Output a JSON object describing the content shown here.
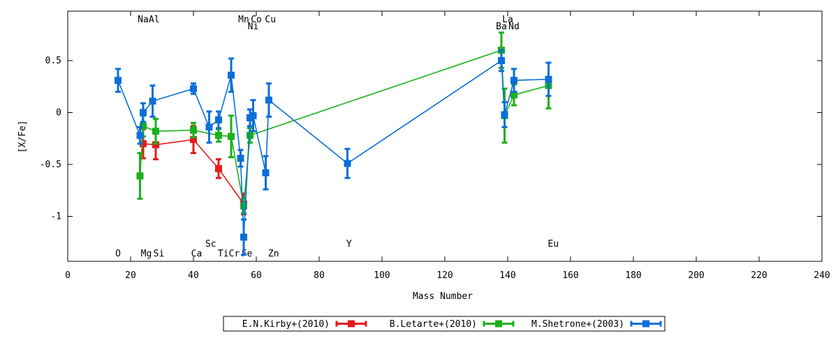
{
  "chart_data": {
    "type": "scatter",
    "title": "",
    "xlabel": "Mass Number",
    "ylabel": "[X/Fe]",
    "xlim": [
      0,
      240
    ],
    "ylim": [
      -1.45,
      0.97
    ],
    "xticks": [
      0,
      20,
      40,
      60,
      80,
      100,
      120,
      140,
      160,
      180,
      200,
      220,
      240
    ],
    "yticks": [
      -1,
      -0.5,
      0,
      0.5
    ],
    "ytick_labels": [
      "-1",
      "-0.5",
      "0",
      "0.5"
    ],
    "grid": false,
    "legend_position": "bottom-center",
    "element_labels": [
      {
        "text": "Na",
        "x": 24,
        "row": "top1"
      },
      {
        "text": "Al",
        "x": 27.5,
        "row": "top1"
      },
      {
        "text": "Mn",
        "x": 56,
        "row": "top1"
      },
      {
        "text": "Co",
        "x": 60,
        "row": "top1"
      },
      {
        "text": "Cu",
        "x": 64.5,
        "row": "top1"
      },
      {
        "text": "Ni",
        "x": 59,
        "row": "top2"
      },
      {
        "text": "La",
        "x": 140,
        "row": "top1"
      },
      {
        "text": "Ba",
        "x": 138,
        "row": "top2"
      },
      {
        "text": "Nd",
        "x": 142,
        "row": "top2"
      },
      {
        "text": "Sc",
        "x": 45.5,
        "row": "bot1"
      },
      {
        "text": "Y",
        "x": 89.5,
        "row": "bot1"
      },
      {
        "text": "Eu",
        "x": 154.5,
        "row": "bot1"
      },
      {
        "text": "O",
        "x": 16,
        "row": "bot2"
      },
      {
        "text": "Mg",
        "x": 25,
        "row": "bot2"
      },
      {
        "text": "Si",
        "x": 29,
        "row": "bot2"
      },
      {
        "text": "Ca",
        "x": 41,
        "row": "bot2"
      },
      {
        "text": "Ti",
        "x": 49.5,
        "row": "bot2"
      },
      {
        "text": "Cr",
        "x": 53,
        "row": "bot2"
      },
      {
        "text": "Fe",
        "x": 57,
        "row": "bot2"
      },
      {
        "text": "Zn",
        "x": 65.5,
        "row": "bot2"
      }
    ],
    "series": [
      {
        "name": "E.N.Kirby+(2010)",
        "color": "#e8191d",
        "points": [
          {
            "x": 24,
            "y": -0.3,
            "err": 0.14
          },
          {
            "x": 28,
            "y": -0.31,
            "err": 0.14
          },
          {
            "x": 40,
            "y": -0.26,
            "err": 0.13
          },
          {
            "x": 48,
            "y": -0.54,
            "err": 0.09
          },
          {
            "x": 56,
            "y": -0.88,
            "err": 0.1
          }
        ]
      },
      {
        "name": "B.Letarte+(2010)",
        "color": "#1ab11a",
        "points": [
          {
            "x": 23,
            "y": -0.61,
            "err": 0.22
          },
          {
            "x": 24,
            "y": -0.13,
            "err": 0.1
          },
          {
            "x": 28,
            "y": -0.18,
            "err": 0.12
          },
          {
            "x": 40,
            "y": -0.17,
            "err": 0.07
          },
          {
            "x": 48,
            "y": -0.22,
            "err": 0.06
          },
          {
            "x": 52,
            "y": -0.23,
            "err": 0.2
          },
          {
            "x": 56,
            "y": -0.9,
            "err": 0.07
          },
          {
            "x": 58,
            "y": -0.22,
            "err": 0.07
          },
          {
            "x": 138,
            "y": 0.6,
            "err": 0.17
          },
          {
            "x": 139,
            "y": -0.03,
            "err": 0.26
          },
          {
            "x": 142,
            "y": 0.17,
            "err": 0.1
          },
          {
            "x": 153,
            "y": 0.26,
            "err": 0.22
          }
        ]
      },
      {
        "name": "M.Shetrone+(2003)",
        "color": "#0c6fd8",
        "points": [
          {
            "x": 16,
            "y": 0.31,
            "err": 0.11
          },
          {
            "x": 23,
            "y": -0.22,
            "err": 0.08
          },
          {
            "x": 24,
            "y": 0.0,
            "err": 0.09
          },
          {
            "x": 27,
            "y": 0.11,
            "err": 0.15
          },
          {
            "x": 40,
            "y": 0.23,
            "err": 0.05
          },
          {
            "x": 45,
            "y": -0.14,
            "err": 0.15
          },
          {
            "x": 48,
            "y": -0.07,
            "err": 0.08
          },
          {
            "x": 52,
            "y": 0.36,
            "err": 0.16
          },
          {
            "x": 55,
            "y": -0.44,
            "err": 0.08
          },
          {
            "x": 56,
            "y": -1.2,
            "err": 0.17
          },
          {
            "x": 58,
            "y": -0.05,
            "err": 0.08
          },
          {
            "x": 59,
            "y": -0.03,
            "err": 0.15
          },
          {
            "x": 63,
            "y": -0.58,
            "err": 0.16
          },
          {
            "x": 64,
            "y": 0.12,
            "err": 0.16
          },
          {
            "x": 89,
            "y": -0.49,
            "err": 0.14
          },
          {
            "x": 138,
            "y": 0.5,
            "err": 0.1
          },
          {
            "x": 139,
            "y": -0.02,
            "err": 0.12
          },
          {
            "x": 142,
            "y": 0.31,
            "err": 0.11
          },
          {
            "x": 153,
            "y": 0.32,
            "err": 0.16
          }
        ]
      }
    ]
  }
}
